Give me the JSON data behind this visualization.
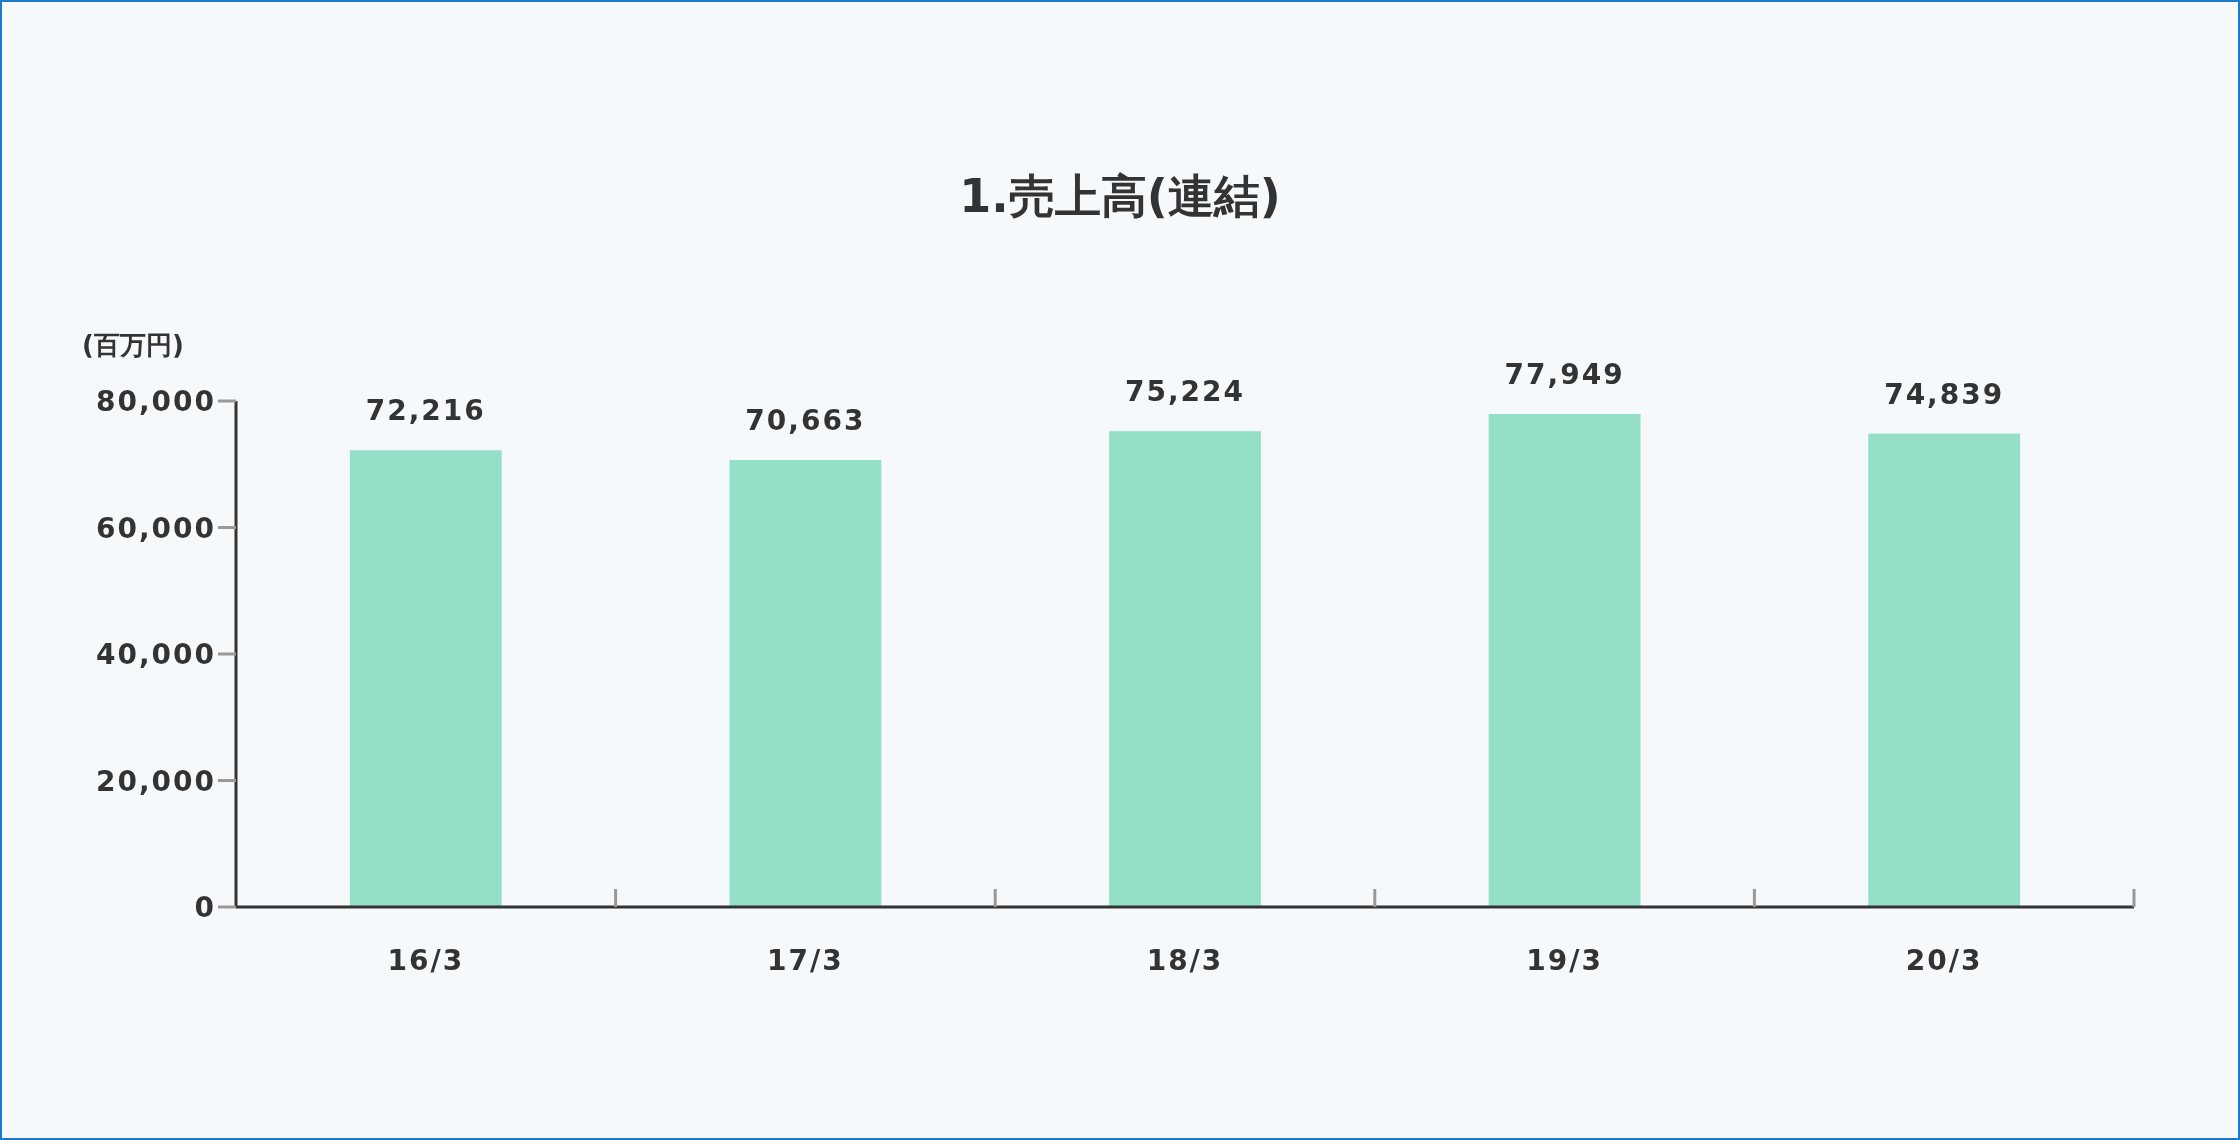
{
  "chart_data": {
    "type": "bar",
    "title": "1.売上高(連結)",
    "ylabel": "(百万円)",
    "categories": [
      "16/3",
      "17/3",
      "18/3",
      "19/3",
      "20/3"
    ],
    "values": [
      72216,
      70663,
      75224,
      77949,
      74839
    ],
    "value_labels": [
      "72,216",
      "70,663",
      "75,224",
      "77,949",
      "74,839"
    ],
    "color": "#93e0c6",
    "ylim": [
      0,
      80000
    ],
    "yticks": [
      {
        "value": 0,
        "label": "0"
      },
      {
        "value": 20000,
        "label": "20,000"
      },
      {
        "value": 40000,
        "label": "40,000"
      },
      {
        "value": 60000,
        "label": "60,000"
      },
      {
        "value": 80000,
        "label": "80,000"
      }
    ],
    "grid": false
  }
}
